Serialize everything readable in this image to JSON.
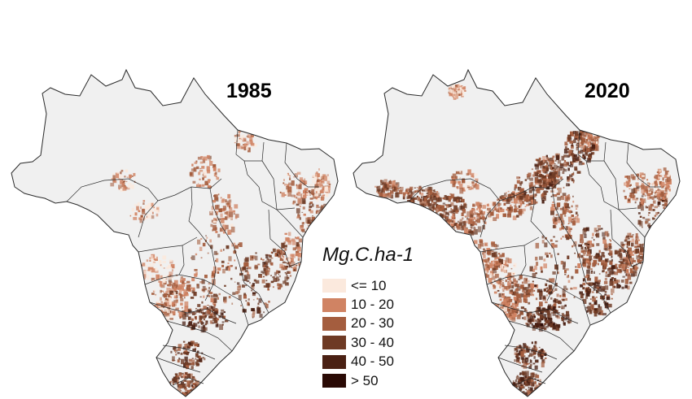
{
  "maps": [
    {
      "title": "1985",
      "intensity": 0.55
    },
    {
      "title": "2020",
      "intensity": 1.0
    }
  ],
  "legend": {
    "title": "Mg.C.ha-1",
    "items": [
      {
        "label": "<= 10",
        "color": "#fbe9dd"
      },
      {
        "label": "10 - 20",
        "color": "#d08363"
      },
      {
        "label": "20 - 30",
        "color": "#a45d3e"
      },
      {
        "label": "30 - 40",
        "color": "#6e3a24"
      },
      {
        "label": "40 - 50",
        "color": "#4a2013"
      },
      {
        "label": "> 50",
        "color": "#2a0a05"
      }
    ]
  },
  "colors": {
    "land": "#f0f0f0",
    "border": "#2a2a2a"
  }
}
